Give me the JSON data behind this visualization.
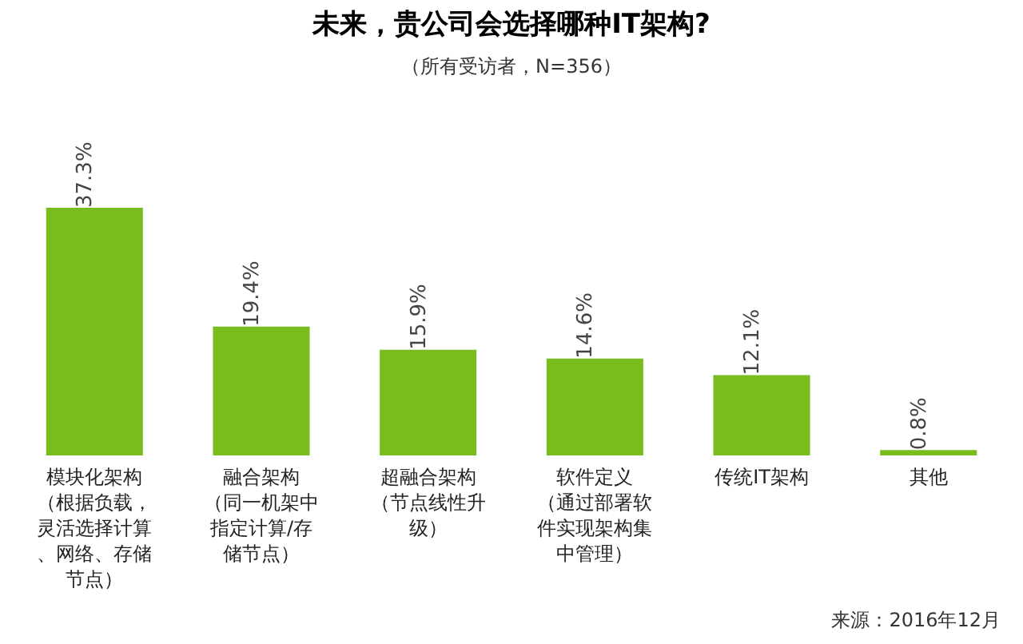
{
  "chart_data": {
    "type": "bar",
    "title": "未来，贵公司会选择哪种IT架构?",
    "subtitle": "（所有受访者，N=356）",
    "categories": [
      "模块化架构（根据负载，灵活选择计算、网络、存储节点）",
      "融合架构（同一机架中指定计算/存储节点）",
      "超融合架构（节点线性升级）",
      "软件定义（通过部署软件实现架构集中管理）",
      "传统IT架构",
      "其他"
    ],
    "values": [
      37.3,
      19.4,
      15.9,
      14.6,
      12.1,
      0.8
    ],
    "value_labels": [
      "37.3%",
      "19.4%",
      "15.9%",
      "14.6%",
      "12.1%",
      "0.8%"
    ],
    "color": "#78bc1e",
    "annotations": [
      "来源：2016年12月"
    ]
  }
}
